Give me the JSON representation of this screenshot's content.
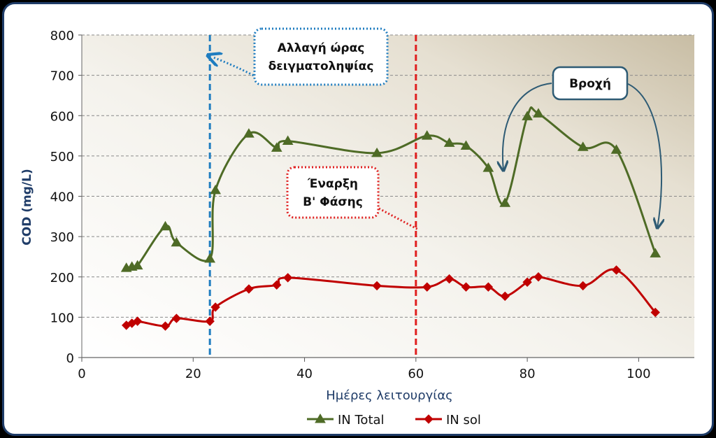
{
  "chart_data": {
    "type": "line",
    "xlabel": "Ημέρες λειτουργίας",
    "ylabel": "COD (mg/L)",
    "xlim": [
      0,
      110
    ],
    "ylim": [
      0,
      800
    ],
    "xticks": [
      0,
      20,
      40,
      60,
      80,
      100
    ],
    "yticks": [
      0,
      100,
      200,
      300,
      400,
      500,
      600,
      700,
      800
    ],
    "grid": "horizontal dashed",
    "legend_position": "bottom-center",
    "series": [
      {
        "name": "IN Total",
        "color": "#4e6b26",
        "marker": "triangle",
        "x": [
          8,
          9,
          10,
          15,
          17,
          23,
          24,
          30,
          35,
          37,
          53,
          62,
          66,
          69,
          73,
          76,
          80,
          82,
          90,
          96,
          103
        ],
        "y": [
          222,
          225,
          228,
          325,
          285,
          245,
          415,
          555,
          520,
          537,
          507,
          550,
          532,
          525,
          470,
          383,
          598,
          605,
          522,
          515,
          258
        ]
      },
      {
        "name": "IN sol",
        "color": "#c00000",
        "marker": "diamond",
        "x": [
          8,
          9,
          10,
          15,
          17,
          23,
          24,
          30,
          35,
          37,
          53,
          62,
          66,
          69,
          73,
          76,
          80,
          82,
          90,
          96,
          103
        ],
        "y": [
          80,
          85,
          90,
          78,
          97,
          90,
          125,
          170,
          180,
          198,
          178,
          175,
          195,
          175,
          175,
          152,
          187,
          200,
          178,
          217,
          112
        ]
      }
    ],
    "vertical_lines": [
      {
        "x": 23,
        "color": "#1f7dc0",
        "style": "dashed"
      },
      {
        "x": 60,
        "color": "#e02020",
        "style": "dashed"
      }
    ],
    "annotations": [
      {
        "id": "sampling",
        "lines": [
          "Αλλαγή ώρας",
          "δειγματοληψίας"
        ],
        "border_color": "#1f7dc0"
      },
      {
        "id": "phase",
        "lines": [
          "Έναρξη",
          "Β' Φάσης"
        ],
        "border_color": "#e02020"
      },
      {
        "id": "rain",
        "lines": [
          "Βροχή"
        ],
        "border_color": "#2e5b74"
      }
    ]
  }
}
